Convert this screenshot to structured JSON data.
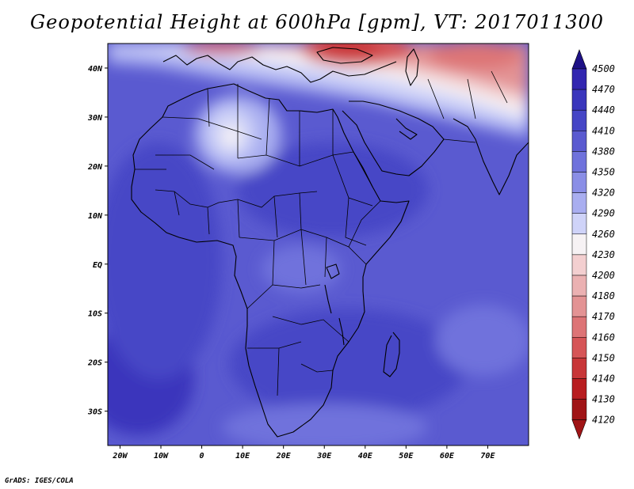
{
  "title": "Geopotential Height at 600hPa [gpm], VT: 2017011300",
  "credit": "GrADS: IGES/COLA",
  "map": {
    "variable": "Geopotential Height",
    "level": "600hPa",
    "units": "gpm",
    "valid_time": "2017011300",
    "lon_range": [
      -23,
      80
    ],
    "lat_range": [
      -37,
      45
    ],
    "lat_labels": [
      "40N",
      "30N",
      "20N",
      "10N",
      "EQ",
      "10S",
      "20S",
      "30S"
    ],
    "lon_labels": [
      "20W",
      "10W",
      "0",
      "10E",
      "20E",
      "30E",
      "40E",
      "50E",
      "60E",
      "70E"
    ]
  },
  "colorbar": {
    "levels": [
      "4500",
      "4470",
      "4440",
      "4410",
      "4380",
      "4350",
      "4320",
      "4290",
      "4260",
      "4230",
      "4200",
      "4180",
      "4170",
      "4160",
      "4150",
      "4140",
      "4130",
      "4120"
    ],
    "colors": [
      "#2a1a9e",
      "#3226b0",
      "#3a36bc",
      "#4646c6",
      "#5a5ad0",
      "#6f72dc",
      "#8a8ee6",
      "#a9aef0",
      "#cfd3f8",
      "#f6f2f4",
      "#f3cfd0",
      "#ebb1b2",
      "#e39394",
      "#dd7476",
      "#d65557",
      "#c83638",
      "#b81d20",
      "#a01416"
    ],
    "top_arrow_color": "#1e1186",
    "bottom_arrow_color": "#a01416"
  }
}
